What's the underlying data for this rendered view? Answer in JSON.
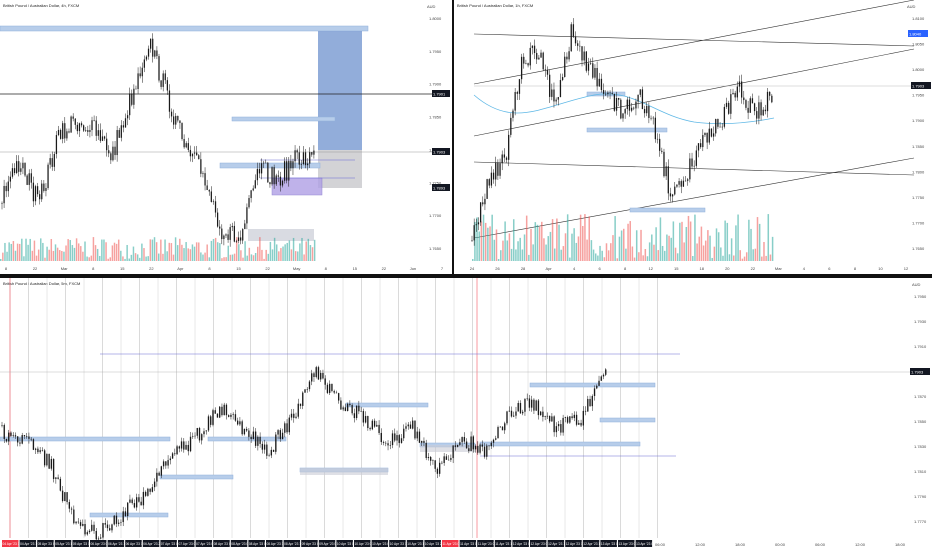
{
  "colors": {
    "up": "#26a69a",
    "down": "#ef5350",
    "candle": "#1a1a1a",
    "zone_blue": "#b7cdea",
    "zone_blue_edge": "#8fb0dc",
    "zone_purple": "#b0a0e6",
    "zone_gray": "#c9ccd6",
    "projection": "#7f9fd3",
    "price_badge": "#131722",
    "level_badge": "#2962ff",
    "daychip": "#131722",
    "daychip_red": "#f23645",
    "trendline": "#333333",
    "hline_purple": "#6b6bd6"
  },
  "panes": {
    "top_left": {
      "title": "British Pound / Australian Dollar, 4h, FXCM",
      "currency": "AUD",
      "price_scale": [
        "1.8000",
        "1.7950",
        "1.7900",
        "1.7850",
        "1.7800",
        "1.7750",
        "1.7700",
        "1.7650"
      ],
      "price_labels": [
        "1.7901",
        "1.7903",
        "1.7893"
      ],
      "time_labels": [
        "8",
        "22",
        "Mar",
        "8",
        "15",
        "22",
        "Apr",
        "8",
        "15",
        "22",
        "May",
        "8",
        "15",
        "22",
        "Jun",
        "7"
      ]
    },
    "top_right": {
      "title": "British Pound / Australian Dollar, 1h, FXCM",
      "currency": "AUD",
      "price_scale": [
        "1.8100",
        "1.8050",
        "1.8000",
        "1.7950",
        "1.7900",
        "1.7850",
        "1.7800",
        "1.7750",
        "1.7700",
        "1.7650"
      ],
      "price_labels": [
        "1.8040",
        "1.7903"
      ],
      "time_labels": [
        "24",
        "26",
        "28",
        "Apr",
        "4",
        "6",
        "8",
        "12",
        "15",
        "18",
        "20",
        "22",
        "Mar",
        "4",
        "6",
        "8",
        "10",
        "12"
      ]
    },
    "bottom": {
      "title": "British Pound / Australian Dollar, 5m, FXCM",
      "currency": "AUD",
      "price_scale": [
        "1.7950",
        "1.7930",
        "1.7910",
        "1.7890",
        "1.7870",
        "1.7850",
        "1.7830",
        "1.7810",
        "1.7790",
        "1.7770"
      ],
      "price_labels": [
        "1.7903"
      ],
      "time_labels": [
        "04 Apr '23  14:20",
        "04 Apr '23  18:20",
        "05 Apr '23  05:00",
        "05 Apr '23  11:00",
        "05 Apr '23  14:00",
        "06 Apr '23  08:00",
        "06 Apr '23  11:00",
        "06 Apr '23  18:00",
        "06 Apr '23  20:00",
        "07 Apr '23  00:00",
        "07 Apr '23  06:00",
        "07 Apr '23  09:00",
        "08 Apr '23  00:00",
        "08 Apr '23  04:00",
        "08 Apr '23  08:00",
        "08 Apr '23  12:00",
        "08 Apr '23  13:00",
        "09 Apr '23  00:00",
        "09 Apr '23  04:00",
        "10 Apr '23  02:00",
        "10 Apr '23  05:00",
        "10 Apr '23  09:00",
        "10 Apr '23  13:00",
        "10 Apr '23  16:00",
        "10 Apr '23  21:00",
        "11 Apr '23  00:00",
        "11 Apr '23  06:00",
        "11 Apr '23  08:00",
        "11 Apr '23  14:00",
        "12 Apr '23  00:00",
        "12 Apr '23  09:00",
        "12 Apr '23  10:00",
        "12 Apr '23  14:00",
        "12 Apr '23  18:00",
        "13 Apr '23  00:00",
        "13 Apr '23  06:00",
        "13 Apr '23  08:00"
      ],
      "time_labels_plain": [
        "06:00",
        "12:00",
        "18:00",
        "00:00",
        "06:00",
        "12:00",
        "18:00"
      ]
    }
  }
}
